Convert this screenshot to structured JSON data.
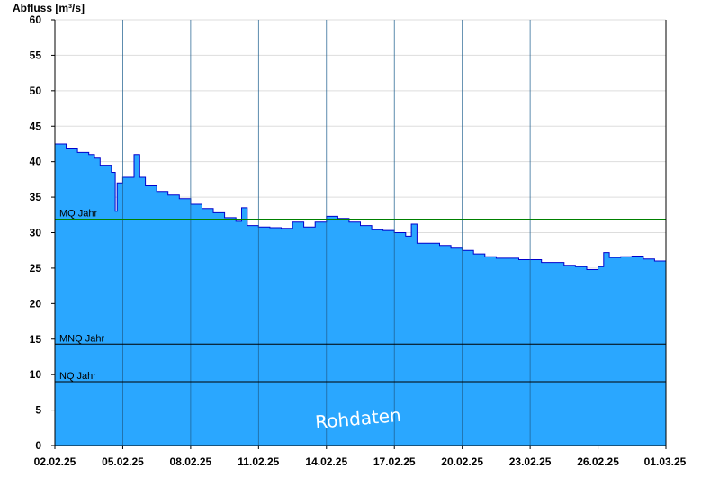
{
  "chart_data": {
    "type": "area",
    "ylabel": "Abfluss [m³/s]",
    "xlabel": "",
    "ylim": [
      0,
      60
    ],
    "yticks": [
      0,
      5,
      10,
      15,
      20,
      25,
      30,
      35,
      40,
      45,
      50,
      55,
      60
    ],
    "xlim": [
      "2025-02-02",
      "2025-03-01"
    ],
    "xticks": [
      {
        "date": "2025-02-02",
        "label": "02.02.25"
      },
      {
        "date": "2025-02-05",
        "label": "05.02.25"
      },
      {
        "date": "2025-02-08",
        "label": "08.02.25"
      },
      {
        "date": "2025-02-11",
        "label": "11.02.25"
      },
      {
        "date": "2025-02-14",
        "label": "14.02.25"
      },
      {
        "date": "2025-02-17",
        "label": "17.02.25"
      },
      {
        "date": "2025-02-20",
        "label": "20.02.25"
      },
      {
        "date": "2025-02-23",
        "label": "23.02.25"
      },
      {
        "date": "2025-02-26",
        "label": "26.02.25"
      },
      {
        "date": "2025-03-01",
        "label": "01.03.25"
      }
    ],
    "grid": true,
    "series": [
      {
        "x": [
          "2025-02-02T00:00",
          "2025-02-02T12:00",
          "2025-02-03T00:00",
          "2025-02-03T12:00",
          "2025-02-03T18:00",
          "2025-02-04T00:00",
          "2025-02-04T12:00",
          "2025-02-04T16:00",
          "2025-02-04T18:00",
          "2025-02-05T00:00",
          "2025-02-05T12:00",
          "2025-02-05T18:00",
          "2025-02-06T00:00",
          "2025-02-06T12:00",
          "2025-02-07T00:00",
          "2025-02-07T12:00",
          "2025-02-08T00:00",
          "2025-02-08T12:00",
          "2025-02-09T00:00",
          "2025-02-09T12:00",
          "2025-02-10T00:00",
          "2025-02-10T06:00",
          "2025-02-10T12:00",
          "2025-02-11T00:00",
          "2025-02-11T12:00",
          "2025-02-12T00:00",
          "2025-02-12T12:00",
          "2025-02-13T00:00",
          "2025-02-13T12:00",
          "2025-02-14T00:00",
          "2025-02-14T12:00",
          "2025-02-15T00:00",
          "2025-02-15T12:00",
          "2025-02-16T00:00",
          "2025-02-16T12:00",
          "2025-02-17T00:00",
          "2025-02-17T12:00",
          "2025-02-17T18:00",
          "2025-02-18T00:00",
          "2025-02-18T12:00",
          "2025-02-19T00:00",
          "2025-02-19T12:00",
          "2025-02-20T00:00",
          "2025-02-20T12:00",
          "2025-02-21T00:00",
          "2025-02-21T12:00",
          "2025-02-22T00:00",
          "2025-02-22T12:00",
          "2025-02-23T00:00",
          "2025-02-23T12:00",
          "2025-02-24T00:00",
          "2025-02-24T12:00",
          "2025-02-25T00:00",
          "2025-02-25T12:00",
          "2025-02-26T00:00",
          "2025-02-26T06:00",
          "2025-02-26T12:00",
          "2025-02-27T00:00",
          "2025-02-27T12:00",
          "2025-02-28T00:00",
          "2025-02-28T12:00",
          "2025-03-01T00:00"
        ],
        "values": [
          42.5,
          41.8,
          41.3,
          41.0,
          40.5,
          39.5,
          38.5,
          33.0,
          37.0,
          37.8,
          41.0,
          37.8,
          36.6,
          35.8,
          35.3,
          34.8,
          34.0,
          33.4,
          32.8,
          32.1,
          31.6,
          33.5,
          31.0,
          30.8,
          30.7,
          30.6,
          31.5,
          30.8,
          31.5,
          32.3,
          32.0,
          31.5,
          31.0,
          30.4,
          30.3,
          30.0,
          29.5,
          31.2,
          28.5,
          28.5,
          28.2,
          27.8,
          27.5,
          27.0,
          26.6,
          26.4,
          26.4,
          26.2,
          26.2,
          25.8,
          25.8,
          25.4,
          25.2,
          24.8,
          25.2,
          27.2,
          26.5,
          26.6,
          26.7,
          26.3,
          26.0,
          25.8
        ]
      }
    ],
    "reference_lines": [
      {
        "label": "MQ Jahr",
        "value": 31.9,
        "color": "#008000"
      },
      {
        "label": "MNQ Jahr",
        "value": 14.3,
        "color": "#000000"
      },
      {
        "label": "NQ Jahr",
        "value": 9.0,
        "color": "#000000"
      }
    ],
    "watermark": "Rohdaten",
    "colors": {
      "fill": "#2aa7ff",
      "line": "#0000cc",
      "grid": "#dddddd",
      "vline": "#1f5f8f"
    }
  }
}
